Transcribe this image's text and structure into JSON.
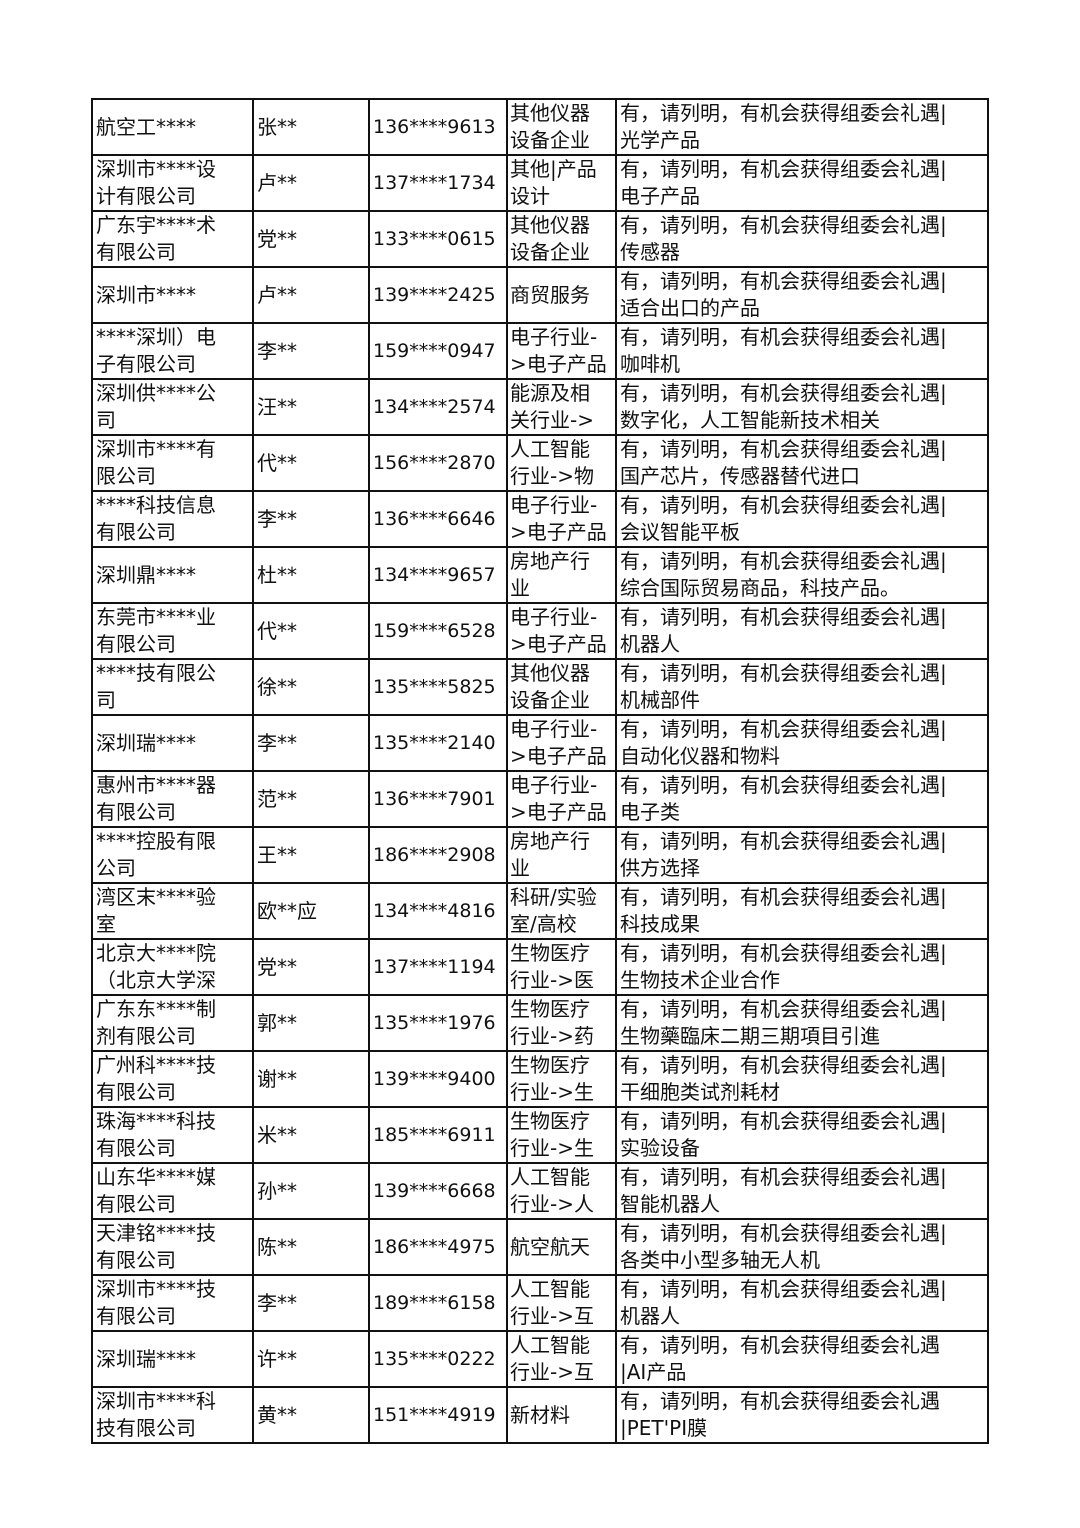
{
  "table": {
    "rows": [
      {
        "company": [
          "航空工****"
        ],
        "name": "张**",
        "phone": "136****9613",
        "industry": [
          "其他仪器",
          "设备企业"
        ],
        "note": [
          "有，请列明，有机会获得组委会礼遇|",
          "光学产品"
        ]
      },
      {
        "company": [
          "深圳市****设",
          "计有限公司"
        ],
        "name": "卢**",
        "phone": "137****1734",
        "industry": [
          "其他|产品",
          "设计"
        ],
        "note": [
          "有，请列明，有机会获得组委会礼遇|",
          "电子产品"
        ]
      },
      {
        "company": [
          "广东宇****术",
          "有限公司"
        ],
        "name": "党**",
        "phone": "133****0615",
        "industry": [
          "其他仪器",
          "设备企业"
        ],
        "note": [
          "有，请列明，有机会获得组委会礼遇|",
          "传感器"
        ]
      },
      {
        "company": [
          "深圳市****"
        ],
        "name": "卢**",
        "phone": "139****2425",
        "industry": [
          "商贸服务"
        ],
        "note": [
          "有，请列明，有机会获得组委会礼遇|",
          "适合出口的产品"
        ]
      },
      {
        "company": [
          "****深圳）电",
          "子有限公司"
        ],
        "name": "李**",
        "phone": "159****0947",
        "industry": [
          "电子行业-",
          ">电子产品"
        ],
        "note": [
          "有，请列明，有机会获得组委会礼遇|",
          "咖啡机"
        ]
      },
      {
        "company": [
          "深圳供****公",
          "司"
        ],
        "name": "汪**",
        "phone": "134****2574",
        "industry": [
          "能源及相",
          "关行业->"
        ],
        "note": [
          "有，请列明，有机会获得组委会礼遇|",
          "数字化，人工智能新技术相关"
        ]
      },
      {
        "company": [
          "深圳市****有",
          "限公司"
        ],
        "name": "代**",
        "phone": "156****2870",
        "industry": [
          "人工智能",
          "行业->物"
        ],
        "note": [
          "有，请列明，有机会获得组委会礼遇|",
          "国产芯片，传感器替代进口"
        ]
      },
      {
        "company": [
          "****科技信息",
          "有限公司"
        ],
        "name": "李**",
        "phone": "136****6646",
        "industry": [
          "电子行业-",
          ">电子产品"
        ],
        "note": [
          "有，请列明，有机会获得组委会礼遇|",
          "会议智能平板"
        ]
      },
      {
        "company": [
          "深圳鼎****"
        ],
        "name": "杜**",
        "phone": "134****9657",
        "industry": [
          "房地产行",
          "业"
        ],
        "note": [
          "有，请列明，有机会获得组委会礼遇|",
          "综合国际贸易商品，科技产品。"
        ]
      },
      {
        "company": [
          "东莞市****业",
          "有限公司"
        ],
        "name": "代**",
        "phone": "159****6528",
        "industry": [
          "电子行业-",
          ">电子产品"
        ],
        "note": [
          "有，请列明，有机会获得组委会礼遇|",
          "机器人"
        ]
      },
      {
        "company": [
          "****技有限公",
          "司"
        ],
        "name": "徐**",
        "phone": "135****5825",
        "industry": [
          "其他仪器",
          "设备企业"
        ],
        "note": [
          "有，请列明，有机会获得组委会礼遇|",
          "机械部件"
        ]
      },
      {
        "company": [
          "深圳瑞****"
        ],
        "name": "李**",
        "phone": "135****2140",
        "industry": [
          "电子行业-",
          ">电子产品"
        ],
        "note": [
          "有，请列明，有机会获得组委会礼遇|",
          "自动化仪器和物料"
        ]
      },
      {
        "company": [
          "惠州市****器",
          "有限公司"
        ],
        "name": "范**",
        "phone": "136****7901",
        "industry": [
          "电子行业-",
          ">电子产品"
        ],
        "note": [
          "有，请列明，有机会获得组委会礼遇|",
          "电子类"
        ]
      },
      {
        "company": [
          "****控股有限",
          "公司"
        ],
        "name": "王**",
        "phone": "186****2908",
        "industry": [
          "房地产行",
          "业"
        ],
        "note": [
          "有，请列明，有机会获得组委会礼遇|",
          "供方选择"
        ]
      },
      {
        "company": [
          "湾区末****验",
          "室"
        ],
        "name": "欧**应",
        "phone": "134****4816",
        "industry": [
          "科研/实验",
          "室/高校"
        ],
        "note": [
          "有，请列明，有机会获得组委会礼遇|",
          "科技成果"
        ]
      },
      {
        "company": [
          "北京大****院",
          "（北京大学深"
        ],
        "name": "党**",
        "phone": "137****1194",
        "industry": [
          "生物医疗",
          "行业->医"
        ],
        "note": [
          "有，请列明，有机会获得组委会礼遇|",
          "生物技术企业合作"
        ]
      },
      {
        "company": [
          "广东东****制",
          "剂有限公司"
        ],
        "name": "郭**",
        "phone": "135****1976",
        "industry": [
          "生物医疗",
          "行业->药"
        ],
        "note": [
          "有，请列明，有机会获得组委会礼遇|",
          "生物藥臨床二期三期項目引進"
        ]
      },
      {
        "company": [
          "广州科****技",
          "有限公司"
        ],
        "name": "谢**",
        "phone": "139****9400",
        "industry": [
          "生物医疗",
          "行业->生"
        ],
        "note": [
          "有，请列明，有机会获得组委会礼遇|",
          "干细胞类试剂耗材"
        ]
      },
      {
        "company": [
          "珠海****科技",
          "有限公司"
        ],
        "name": "米**",
        "phone": "185****6911",
        "industry": [
          "生物医疗",
          "行业->生"
        ],
        "note": [
          "有，请列明，有机会获得组委会礼遇|",
          "实验设备"
        ]
      },
      {
        "company": [
          "山东华****媒",
          "有限公司"
        ],
        "name": "孙**",
        "phone": "139****6668",
        "industry": [
          "人工智能",
          "行业->人"
        ],
        "note": [
          "有，请列明，有机会获得组委会礼遇|",
          "智能机器人"
        ]
      },
      {
        "company": [
          "天津铭****技",
          "有限公司"
        ],
        "name": "陈**",
        "phone": "186****4975",
        "industry": [
          "航空航天"
        ],
        "note": [
          "有，请列明，有机会获得组委会礼遇|",
          "各类中小型多轴无人机"
        ]
      },
      {
        "company": [
          "深圳市****技",
          "有限公司"
        ],
        "name": "李**",
        "phone": "189****6158",
        "industry": [
          "人工智能",
          "行业->互"
        ],
        "note": [
          "有，请列明，有机会获得组委会礼遇|",
          "机器人"
        ]
      },
      {
        "company": [
          "深圳瑞****"
        ],
        "name": "许**",
        "phone": "135****0222",
        "industry": [
          "人工智能",
          "行业->互"
        ],
        "note": [
          "有，请列明，有机会获得组委会礼遇",
          "|AI产品"
        ]
      },
      {
        "company": [
          "深圳市****科",
          "技有限公司"
        ],
        "name": "黄**",
        "phone": "151****4919",
        "industry": [
          "新材料"
        ],
        "note": [
          "有，请列明，有机会获得组委会礼遇",
          "|PET'PI膜"
        ]
      }
    ]
  }
}
